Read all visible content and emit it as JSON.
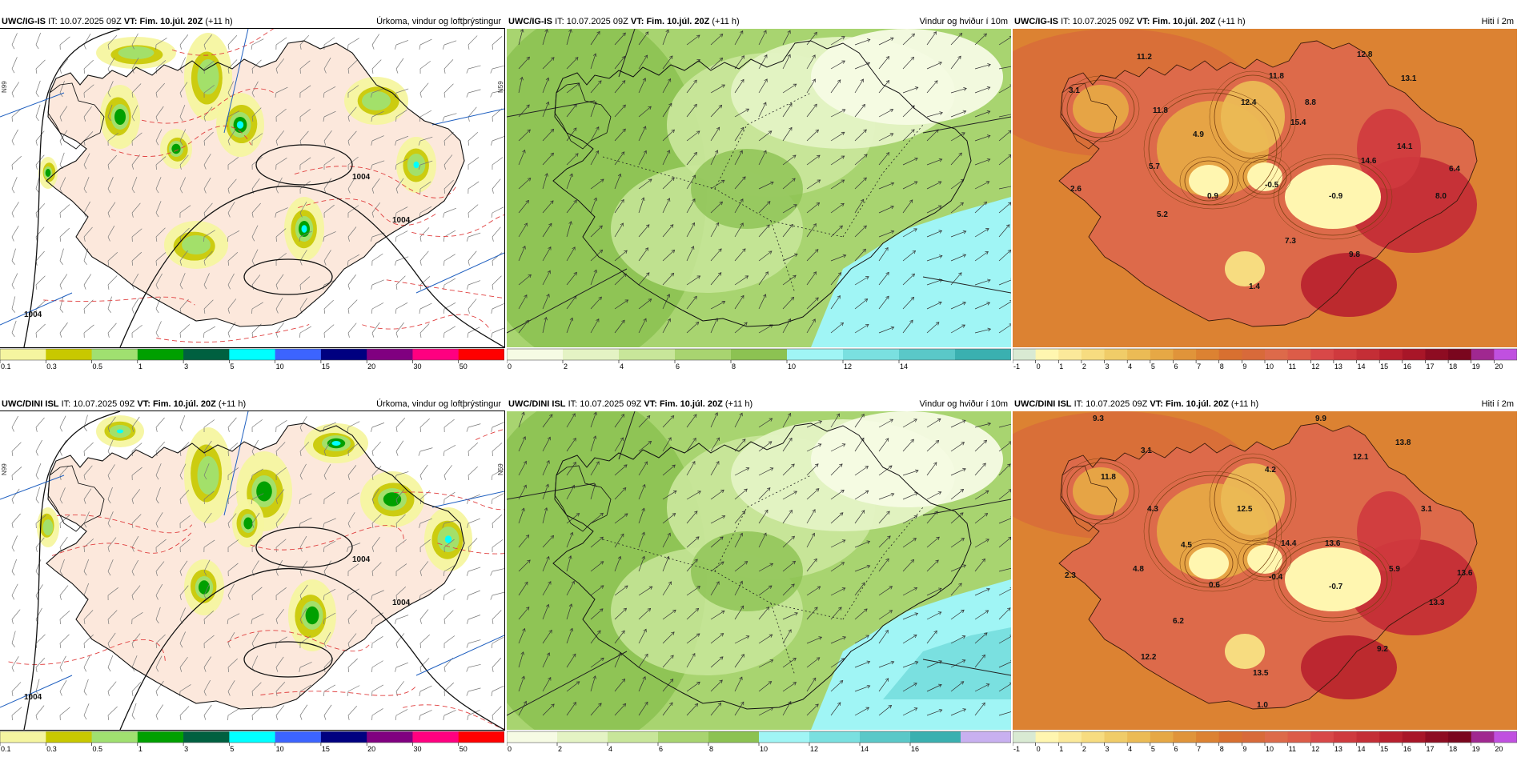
{
  "panels": [
    {
      "id": "p1",
      "model": "UWC/IG-IS",
      "it_label": "IT:",
      "it_value": "10.07.2025 09Z",
      "vt_label": "VT:",
      "vt_value": "Fim. 10.júl. 20Z",
      "lead": "(+11 h)",
      "product": "Úrkoma, vindur og loftþrýstingur",
      "type": "precip",
      "isobar_labels": [
        "1004",
        "1004",
        "1004"
      ],
      "lat_labels": [
        "N99",
        "N59"
      ],
      "legend_ticks": [
        "0.1",
        "0.3",
        "0.5",
        "1",
        "3",
        "5",
        "10",
        "15",
        "20",
        "30",
        "50"
      ],
      "legend_colors": [
        "#f5f5a0",
        "#c8c800",
        "#a0e070",
        "#00a000",
        "#006040",
        "#00ffff",
        "#3c64ff",
        "#000080",
        "#800080",
        "#ff0080",
        "#ff0000"
      ]
    },
    {
      "id": "p2",
      "model": "UWC/IG-IS",
      "it_label": "IT:",
      "it_value": "10.07.2025 09Z",
      "vt_label": "VT:",
      "vt_value": "Fim. 10.júl. 20Z",
      "lead": "(+11 h)",
      "product": "Vindur og hviður í 10m",
      "type": "wind",
      "legend_ticks": [
        "0",
        "2",
        "4",
        "6",
        "8",
        "10",
        "12",
        "14"
      ],
      "legend_colors": [
        "#f6fbe4",
        "#e4f3c4",
        "#c8e69a",
        "#a8d470",
        "#8cc252",
        "#a0f5f5",
        "#7ae0e0",
        "#5ac8c8",
        "#3ab0b0"
      ]
    },
    {
      "id": "p3",
      "model": "UWC/IG-IS",
      "it_label": "IT:",
      "it_value": "10.07.2025 09Z",
      "vt_label": "VT:",
      "vt_value": "Fim. 10.júl. 20Z",
      "lead": "(+11 h)",
      "product": "Hiti í 2m",
      "type": "temp",
      "temp_labels": [
        "11.2",
        "12.8",
        "3.1",
        "11.8",
        "13.1",
        "12.4",
        "11.8",
        "15.4",
        "8.8",
        "4.9",
        "14.1",
        "14.6",
        "6.4",
        "5.7",
        "2.6",
        "0.9",
        "-0.5",
        "-0.9",
        "8.0",
        "5.2",
        "7.3",
        "9.8",
        "1.4"
      ],
      "legend_ticks": [
        "-1",
        "0",
        "1",
        "2",
        "3",
        "4",
        "5",
        "6",
        "7",
        "8",
        "9",
        "10",
        "11",
        "12",
        "13",
        "14",
        "15",
        "16",
        "17",
        "18",
        "19",
        "20"
      ],
      "legend_colors": [
        "#d9ead3",
        "#fff6b0",
        "#fbe99a",
        "#f7dc80",
        "#f0cc68",
        "#ebbb55",
        "#e6a845",
        "#e0943a",
        "#dc8232",
        "#d87030",
        "#d86a3a",
        "#dd6a4a",
        "#dc5c48",
        "#d84848",
        "#cf3a3e",
        "#c42e36",
        "#b8202e",
        "#a81628",
        "#8e0c22",
        "#7a061e",
        "#a02890",
        "#c050e0"
      ]
    },
    {
      "id": "p4",
      "model": "UWC/DINI ISL",
      "it_label": "IT:",
      "it_value": "10.07.2025 09Z",
      "vt_label": "VT:",
      "vt_value": "Fim. 10.júl. 20Z",
      "lead": "(+11 h)",
      "product": "Úrkoma, vindur og loftþrýstingur",
      "type": "precip",
      "isobar_labels": [
        "1004",
        "1004",
        "1004"
      ],
      "lat_labels": [
        "N99",
        "N59"
      ],
      "legend_ticks": [
        "0.1",
        "0.3",
        "0.5",
        "1",
        "3",
        "5",
        "10",
        "15",
        "20",
        "30",
        "50"
      ],
      "legend_colors": [
        "#f5f5a0",
        "#c8c800",
        "#a0e070",
        "#00a000",
        "#006040",
        "#00ffff",
        "#3c64ff",
        "#000080",
        "#800080",
        "#ff0080",
        "#ff0000"
      ]
    },
    {
      "id": "p5",
      "model": "UWC/DINI ISL",
      "it_label": "IT:",
      "it_value": "10.07.2025 09Z",
      "vt_label": "VT:",
      "vt_value": "Fim. 10.júl. 20Z",
      "lead": "(+11 h)",
      "product": "Vindur og hviður í 10m",
      "type": "wind",
      "legend_ticks": [
        "0",
        "2",
        "4",
        "6",
        "8",
        "10",
        "12",
        "14",
        "16"
      ],
      "legend_colors": [
        "#f6fbe4",
        "#e4f3c4",
        "#c8e69a",
        "#a8d470",
        "#8cc252",
        "#a0f5f5",
        "#7ae0e0",
        "#5ac8c8",
        "#3ab0b0",
        "#c8b0f0"
      ]
    },
    {
      "id": "p6",
      "model": "UWC/DINI ISL",
      "it_label": "IT:",
      "it_value": "10.07.2025 09Z",
      "vt_label": "VT:",
      "vt_value": "Fim. 10.júl. 20Z",
      "lead": "(+11 h)",
      "product": "Hiti í 2m",
      "type": "temp",
      "temp_labels": [
        "9.3",
        "9.9",
        "3.1",
        "13.8",
        "12.1",
        "11.8",
        "4.3",
        "4.2",
        "12.5",
        "14.4",
        "13.6",
        "3.1",
        "4.5",
        "4.8",
        "2.3",
        "0.6",
        "-0.4",
        "-0.7",
        "5.9",
        "13.6",
        "13.3",
        "6.2",
        "12.2",
        "9.2",
        "13.5",
        "1.0"
      ],
      "legend_ticks": [
        "-1",
        "0",
        "1",
        "2",
        "3",
        "4",
        "5",
        "6",
        "7",
        "8",
        "9",
        "10",
        "11",
        "12",
        "13",
        "14",
        "15",
        "16",
        "17",
        "18",
        "19",
        "20"
      ],
      "legend_colors": [
        "#d9ead3",
        "#fff6b0",
        "#fbe99a",
        "#f7dc80",
        "#f0cc68",
        "#ebbb55",
        "#e6a845",
        "#e0943a",
        "#dc8232",
        "#d87030",
        "#d86a3a",
        "#dd6a4a",
        "#dc5c48",
        "#d84848",
        "#cf3a3e",
        "#c42e36",
        "#b8202e",
        "#a81628",
        "#8e0c22",
        "#7a061e",
        "#a02890",
        "#c050e0"
      ]
    }
  ]
}
